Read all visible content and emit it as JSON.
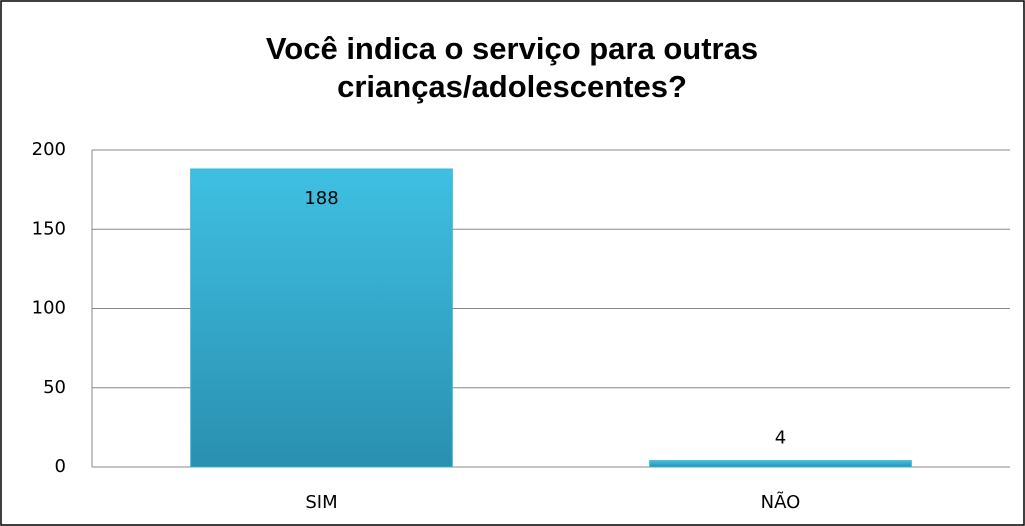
{
  "chart_data": {
    "type": "bar",
    "title": "Você indica o serviço para outras crianças/adolescentes?",
    "categories": [
      "SIM",
      "NÃO"
    ],
    "values": [
      188,
      4
    ],
    "color": "#38b2d4",
    "ylim": [
      0,
      200
    ],
    "yticks": [
      0,
      50,
      100,
      150,
      200
    ],
    "grid": true
  }
}
